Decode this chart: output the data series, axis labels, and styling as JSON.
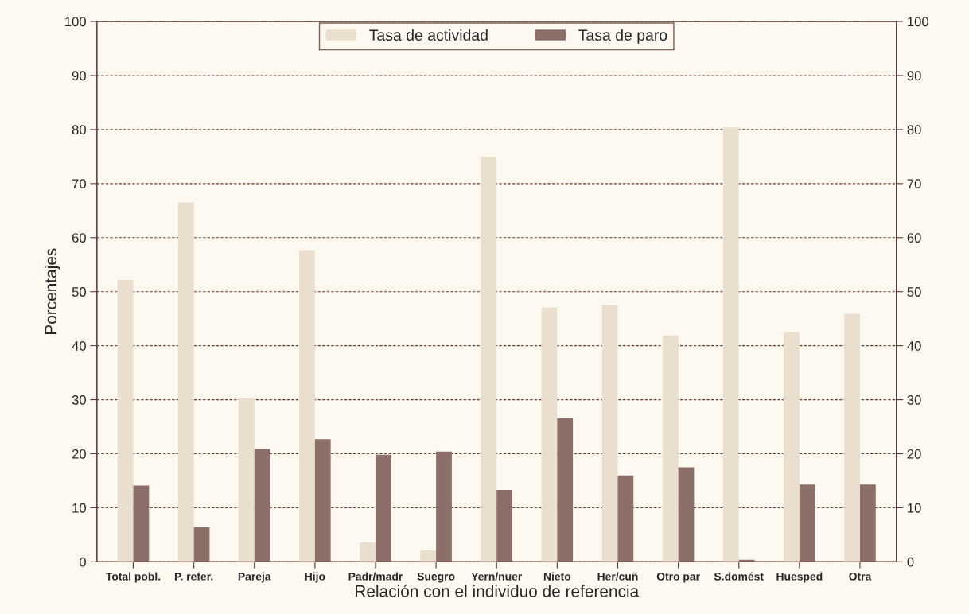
{
  "chart_data": {
    "type": "bar",
    "categories": [
      "Total pobl.",
      "P. refer.",
      "Pareja",
      "Hijo",
      "Padr/madr",
      "Suegro",
      "Yern/nuer",
      "Nieto",
      "Her/cuñ",
      "Otro par",
      "S.domést",
      "Huesped",
      "Otra"
    ],
    "series": [
      {
        "name": "Tasa de actividad",
        "color": "#eadfcf",
        "values": [
          52.2,
          66.5,
          30.3,
          57.7,
          3.6,
          2.1,
          74.9,
          47.1,
          47.5,
          41.9,
          80.4,
          42.5,
          45.9
        ]
      },
      {
        "name": "Tasa de paro",
        "color": "#8c6f68",
        "values": [
          14.1,
          6.4,
          20.9,
          22.7,
          19.8,
          20.4,
          13.3,
          26.6,
          16.0,
          17.5,
          0.4,
          14.3,
          14.3
        ]
      }
    ],
    "xlabel": "Relación con el individuo de referencia",
    "ylabel": "Porcentajes",
    "ylim": [
      0,
      100
    ],
    "yticks": [
      0,
      10,
      20,
      30,
      40,
      50,
      60,
      70,
      80,
      90,
      100
    ],
    "y2lim": [
      0,
      100
    ],
    "y2ticks": [
      0,
      10,
      20,
      30,
      40,
      50,
      60,
      70,
      80,
      90,
      100
    ],
    "grid": "y",
    "legend": "top"
  }
}
